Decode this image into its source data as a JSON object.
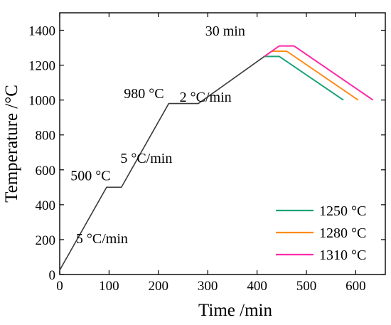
{
  "chart_data": {
    "type": "line",
    "xlabel": "Time /min",
    "ylabel": "Temperature /°C",
    "xlim": [
      0,
      660
    ],
    "ylim": [
      0,
      1500
    ],
    "xticks": [
      0,
      100,
      200,
      300,
      400,
      500,
      600
    ],
    "yticks": [
      0,
      200,
      400,
      600,
      800,
      1000,
      1200,
      1400
    ],
    "grid": false,
    "legend_position": "bottom-right",
    "base_path": {
      "color": "#3a3a3a",
      "x": [
        0,
        95,
        125,
        221,
        281,
        415
      ],
      "y": [
        25,
        500,
        500,
        980,
        980,
        1250
      ]
    },
    "series": [
      {
        "name": "1250 °C",
        "color": "#1aa37a",
        "x": [
          415,
          445,
          575
        ],
        "y": [
          1250,
          1250,
          1000
        ]
      },
      {
        "name": "1280 °C",
        "color": "#ff8c1a",
        "x": [
          415,
          430,
          460,
          605
        ],
        "y": [
          1250,
          1280,
          1280,
          1000
        ]
      },
      {
        "name": "1310 °C",
        "color": "#ff2aa8",
        "x": [
          415,
          445,
          475,
          635
        ],
        "y": [
          1250,
          1310,
          1310,
          1000
        ]
      }
    ],
    "annotations": [
      {
        "text": "5 °C/min",
        "x": 33,
        "y": 180
      },
      {
        "text": "500 °C",
        "x": 22,
        "y": 540
      },
      {
        "text": "5 °C/min",
        "x": 123,
        "y": 640
      },
      {
        "text": "980 °C",
        "x": 130,
        "y": 1010
      },
      {
        "text": "2 °C/min",
        "x": 243,
        "y": 990
      },
      {
        "text": "30 min",
        "x": 295,
        "y": 1370
      }
    ]
  }
}
